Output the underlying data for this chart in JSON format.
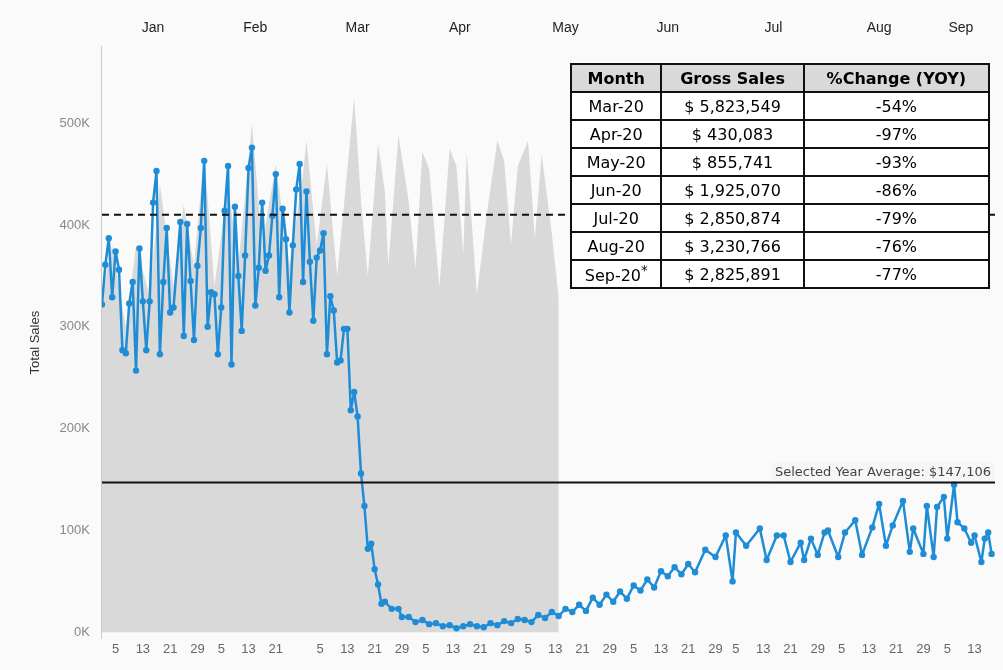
{
  "chart_data": {
    "type": "line",
    "ylabel": "Total Sales",
    "xlim": [
      "--01-01",
      "--09-19"
    ],
    "xticks": [
      {
        "value": "--01-05",
        "label": "5"
      },
      {
        "value": "--01-13",
        "label": "13"
      },
      {
        "value": "--01-21",
        "label": "21"
      },
      {
        "value": "--01-29",
        "label": "29"
      },
      {
        "value": "--02-05",
        "label": "5"
      },
      {
        "value": "--02-13",
        "label": "13"
      },
      {
        "value": "--02-21",
        "label": "21"
      },
      {
        "value": "--03-05",
        "label": "5"
      },
      {
        "value": "--03-13",
        "label": "13"
      },
      {
        "value": "--03-21",
        "label": "21"
      },
      {
        "value": "--03-29",
        "label": "29"
      },
      {
        "value": "--04-05",
        "label": "5"
      },
      {
        "value": "--04-13",
        "label": "13"
      },
      {
        "value": "--04-21",
        "label": "21"
      },
      {
        "value": "--04-29",
        "label": "29"
      },
      {
        "value": "--05-05",
        "label": "5"
      },
      {
        "value": "--05-13",
        "label": "13"
      },
      {
        "value": "--05-21",
        "label": "21"
      },
      {
        "value": "--05-29",
        "label": "29"
      },
      {
        "value": "--06-05",
        "label": "5"
      },
      {
        "value": "--06-13",
        "label": "13"
      },
      {
        "value": "--06-21",
        "label": "21"
      },
      {
        "value": "--06-29",
        "label": "29"
      },
      {
        "value": "--07-05",
        "label": "5"
      },
      {
        "value": "--07-13",
        "label": "13"
      },
      {
        "value": "--07-21",
        "label": "21"
      },
      {
        "value": "--07-29",
        "label": "29"
      },
      {
        "value": "--08-05",
        "label": "5"
      },
      {
        "value": "--08-13",
        "label": "13"
      },
      {
        "value": "--08-21",
        "label": "21"
      },
      {
        "value": "--08-29",
        "label": "29"
      },
      {
        "value": "--09-05",
        "label": "5"
      },
      {
        "value": "--09-13",
        "label": "13"
      }
    ],
    "x2lim": [
      "--01-01",
      "--09-19"
    ],
    "x2ticks": [
      {
        "value": "--01-16",
        "label": "Jan"
      },
      {
        "value": "--02-15",
        "label": "Feb"
      },
      {
        "value": "--03-16",
        "label": "Mar"
      },
      {
        "value": "--04-15",
        "label": "Apr"
      },
      {
        "value": "--05-16",
        "label": "May"
      },
      {
        "value": "--06-15",
        "label": "Jun"
      },
      {
        "value": "--07-16",
        "label": "Jul"
      },
      {
        "value": "--08-16",
        "label": "Aug"
      },
      {
        "value": "--09-09",
        "label": "Sep"
      }
    ],
    "ylim": [
      -6000,
      575000
    ],
    "yticks": [
      {
        "value": 0,
        "label": "0K"
      },
      {
        "value": 100000,
        "label": "100K"
      },
      {
        "value": 200000,
        "label": "200K"
      },
      {
        "value": 300000,
        "label": "300K"
      },
      {
        "value": 400000,
        "label": "400K"
      },
      {
        "value": 500000,
        "label": "500K"
      }
    ],
    "grid": false,
    "legend": false,
    "line_style": "solid",
    "ref_lines": [
      {
        "axis": "y",
        "value": 410000,
        "label": null,
        "line_style": "dashed",
        "color": "#111111"
      },
      {
        "axis": "y",
        "value": 147106,
        "label": "Selected Year Average: $147,106",
        "line_style": "solid",
        "color": "#111111"
      }
    ],
    "annotations": [
      "Month",
      "Gross Sales",
      "%Change (YOY)",
      "Mar-20",
      "$ 5,823,549",
      "-54%",
      "Apr-20",
      "$ 430,083",
      "-97%",
      "May-20",
      "$ 855,741",
      "-93%",
      "Jun-20",
      "$ 1,925,070",
      "-86%",
      "Jul-20",
      "$ 2,850,874",
      "-79%",
      "Aug-20",
      "$ 3,230,766",
      "-76%",
      "Sep-20$^{*}$",
      "$ 2,825,891",
      "-77%"
    ],
    "series": [
      {
        "type": "area",
        "color": "#d9d9d9",
        "x": [
          "--01-01",
          "--01-04",
          "--01-08",
          "--01-11",
          "--01-15",
          "--01-18",
          "--01-22",
          "--01-25",
          "--01-28",
          "--01-31",
          "--02-03",
          "--02-07",
          "--02-10",
          "--02-14",
          "--02-17",
          "--02-21",
          "--02-25",
          "--02-29",
          "--03-01",
          "--03-04",
          "--03-07",
          "--03-10",
          "--03-15",
          "--03-17",
          "--03-19",
          "--03-22",
          "--03-24",
          "--03-25",
          "--03-28",
          "--03-31",
          "--04-02",
          "--04-04",
          "--04-06",
          "--04-09",
          "--04-12",
          "--04-14",
          "--04-16",
          "--04-17",
          "--04-20",
          "--04-23",
          "--04-26",
          "--04-28",
          "--04-30",
          "--05-02",
          "--05-05",
          "--05-07",
          "--05-09",
          "--05-12",
          "--05-14"
        ],
        "values": [
          330000,
          380000,
          300000,
          380000,
          330000,
          440000,
          340000,
          420000,
          360000,
          470000,
          340000,
          440000,
          360000,
          500000,
          380000,
          460000,
          360000,
          450000,
          483000,
          380000,
          460000,
          350000,
          525000,
          424000,
          350000,
          480000,
          433000,
          360000,
          488000,
          423000,
          357000,
          472000,
          455000,
          339000,
          475000,
          458000,
          371000,
          472000,
          332000,
          413000,
          483000,
          463000,
          381000,
          458000,
          483000,
          387000,
          470000,
          391000,
          328000
        ]
      },
      {
        "color": "#1f8dd6",
        "marker": "circle",
        "x": [
          "--01-01",
          "--01-02",
          "--01-03",
          "--01-04",
          "--01-05",
          "--01-06",
          "--01-07",
          "--01-08",
          "--01-09",
          "--01-10",
          "--01-11",
          "--01-12",
          "--01-13",
          "--01-14",
          "--01-15",
          "--01-16",
          "--01-17",
          "--01-18",
          "--01-19",
          "--01-20",
          "--01-21",
          "--01-22",
          "--01-24",
          "--01-25",
          "--01-26",
          "--01-27",
          "--01-28",
          "--01-29",
          "--01-30",
          "--01-31",
          "--02-01",
          "--02-02",
          "--02-03",
          "--02-04",
          "--02-05",
          "--02-06",
          "--02-07",
          "--02-08",
          "--02-09",
          "--02-10",
          "--02-11",
          "--02-12",
          "--02-13",
          "--02-14",
          "--02-15",
          "--02-16",
          "--02-17",
          "--02-18",
          "--02-19",
          "--02-20",
          "--02-21",
          "--02-22",
          "--02-23",
          "--02-24",
          "--02-25",
          "--02-26",
          "--02-27",
          "--02-28",
          "--02-29",
          "--03-01",
          "--03-02",
          "--03-03",
          "--03-04",
          "--03-05",
          "--03-06",
          "--03-07",
          "--03-08",
          "--03-09",
          "--03-10",
          "--03-11",
          "--03-12",
          "--03-13",
          "--03-14",
          "--03-15",
          "--03-16",
          "--03-17",
          "--03-18",
          "--03-19",
          "--03-20",
          "--03-21",
          "--03-22",
          "--03-23",
          "--03-24",
          "--03-26",
          "--03-28",
          "--03-29",
          "--03-31",
          "--04-02",
          "--04-04",
          "--04-06",
          "--04-08",
          "--04-10",
          "--04-12",
          "--04-14",
          "--04-16",
          "--04-18",
          "--04-20",
          "--04-22",
          "--04-24",
          "--04-26",
          "--04-28",
          "--04-30",
          "--05-02",
          "--05-04",
          "--05-06",
          "--05-08",
          "--05-10",
          "--05-12",
          "--05-14",
          "--05-16",
          "--05-18",
          "--05-20",
          "--05-22",
          "--05-24",
          "--05-26",
          "--05-28",
          "--05-30",
          "--06-01",
          "--06-03",
          "--06-05",
          "--06-07",
          "--06-09",
          "--06-11",
          "--06-13",
          "--06-15",
          "--06-17",
          "--06-19",
          "--06-21",
          "--06-23",
          "--06-26",
          "--06-29",
          "--07-02",
          "--07-04",
          "--07-05",
          "--07-08",
          "--07-12",
          "--07-14",
          "--07-17",
          "--07-19",
          "--07-21",
          "--07-24",
          "--07-25",
          "--07-27",
          "--07-29",
          "--07-31",
          "--08-01",
          "--08-04",
          "--08-06",
          "--08-09",
          "--08-11",
          "--08-14",
          "--08-16",
          "--08-18",
          "--08-20",
          "--08-23",
          "--08-25",
          "--08-26",
          "--08-29",
          "--08-30",
          "--09-01",
          "--09-02",
          "--09-04",
          "--09-05",
          "--09-07",
          "--09-08",
          "--09-10",
          "--09-12",
          "--09-13",
          "--09-15",
          "--09-16",
          "--09-17",
          "--09-18"
        ],
        "values": [
          322000,
          361000,
          387000,
          329000,
          374000,
          356000,
          277000,
          274000,
          323000,
          344000,
          257000,
          377000,
          325000,
          277000,
          325000,
          422000,
          453000,
          273000,
          344000,
          397000,
          314000,
          319000,
          403000,
          291000,
          401000,
          345000,
          287000,
          360000,
          397000,
          463000,
          300000,
          334000,
          332000,
          273000,
          319000,
          414000,
          458000,
          263000,
          418000,
          350000,
          296000,
          370000,
          456000,
          476000,
          321000,
          358000,
          422000,
          355000,
          370000,
          409000,
          450000,
          329000,
          416000,
          386000,
          314000,
          380000,
          435000,
          460000,
          344000,
          433000,
          364000,
          306000,
          368000,
          375000,
          392000,
          273000,
          330000,
          316000,
          265000,
          267000,
          298000,
          298000,
          218000,
          236000,
          212000,
          156000,
          124000,
          82000,
          87000,
          62000,
          47000,
          28000,
          30000,
          23000,
          23000,
          15000,
          15000,
          10000,
          12000,
          8000,
          9000,
          6000,
          7000,
          4000,
          6000,
          8000,
          6000,
          5000,
          9000,
          7000,
          11000,
          9000,
          13000,
          12000,
          10000,
          17000,
          14000,
          20000,
          16000,
          23000,
          20000,
          27000,
          21000,
          34000,
          27000,
          37000,
          30000,
          40000,
          33000,
          46000,
          41000,
          52000,
          44000,
          60000,
          55000,
          64000,
          57000,
          67000,
          59000,
          81000,
          74000,
          95000,
          50000,
          98000,
          85000,
          102000,
          71000,
          95000,
          95000,
          69000,
          88000,
          71000,
          92000,
          76000,
          98000,
          100000,
          74000,
          98000,
          110000,
          76000,
          103000,
          126000,
          85000,
          105000,
          129000,
          79000,
          102000,
          77000,
          124000,
          74000,
          123000,
          133000,
          92000,
          145000,
          108000,
          102000,
          88000,
          95000,
          69000,
          92000,
          98000,
          77000
        ]
      }
    ]
  }
}
